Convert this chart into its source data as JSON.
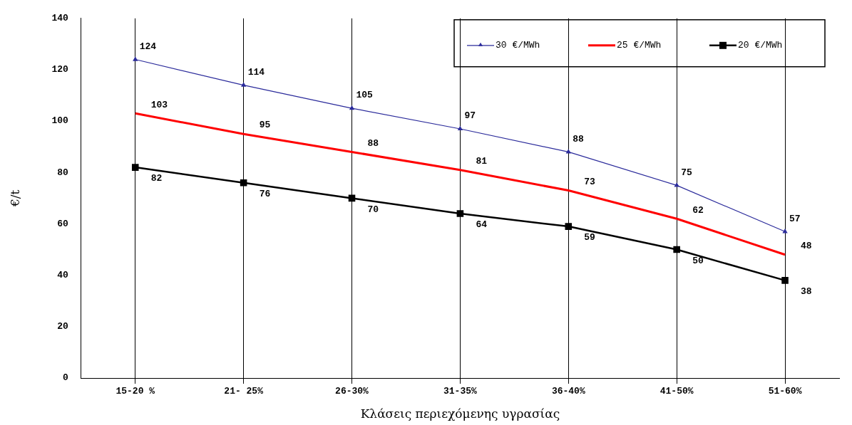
{
  "chart_data": {
    "type": "line",
    "xlabel": "Κλάσεις περιεχόμενης υγρασίας",
    "ylabel": "€/t",
    "categories": [
      "15-20 %",
      "21- 25%",
      "26-30%",
      "31-35%",
      "36-40%",
      "41-50%",
      "51-60%"
    ],
    "series": [
      {
        "name": "30 €/MWh",
        "color": "#2b2b9b",
        "marker": "triangle",
        "values": [
          124,
          114,
          105,
          97,
          88,
          75,
          57
        ]
      },
      {
        "name": "25 €/MWh",
        "color": "#ff0000",
        "marker": "none",
        "values": [
          103,
          95,
          88,
          81,
          73,
          62,
          48
        ]
      },
      {
        "name": "20 €/MWh",
        "color": "#000000",
        "marker": "square",
        "values": [
          82,
          76,
          70,
          64,
          59,
          50,
          38
        ]
      }
    ],
    "ylim": [
      0,
      140
    ],
    "yticks": [
      0,
      20,
      40,
      60,
      80,
      100,
      120,
      140
    ],
    "data_labels": true,
    "grid": "x",
    "legend": "top right"
  }
}
